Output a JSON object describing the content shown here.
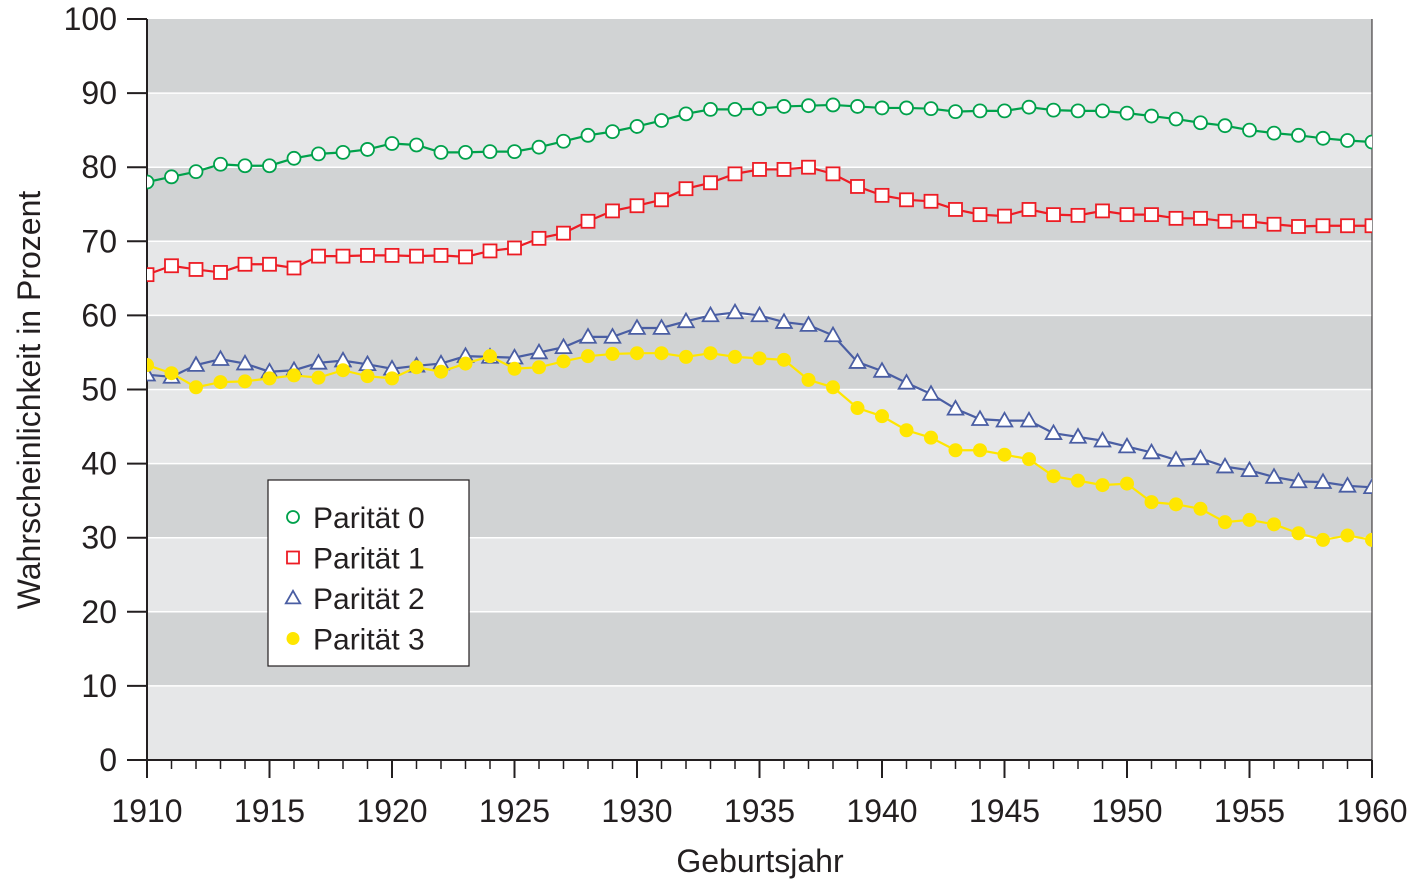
{
  "chart_data": {
    "type": "line",
    "xlabel": "Geburtsjahr",
    "ylabel": "Wahrscheinlichkeit in Prozent",
    "xlim": [
      1910,
      1960
    ],
    "ylim": [
      0,
      100
    ],
    "x_ticks": [
      "1910",
      "1915",
      "1920",
      "1925",
      "1930",
      "1935",
      "1940",
      "1945",
      "1950",
      "1955",
      "1960"
    ],
    "y_ticks": [
      "0",
      "10",
      "20",
      "30",
      "40",
      "50",
      "60",
      "70",
      "80",
      "90",
      "100"
    ],
    "legend_position": "lower-left",
    "background": "alternating horizontal gray bands",
    "x": [
      1910,
      1911,
      1912,
      1913,
      1914,
      1915,
      1916,
      1917,
      1918,
      1919,
      1920,
      1921,
      1922,
      1923,
      1924,
      1925,
      1926,
      1927,
      1928,
      1929,
      1930,
      1931,
      1932,
      1933,
      1934,
      1935,
      1936,
      1937,
      1938,
      1939,
      1940,
      1941,
      1942,
      1943,
      1944,
      1945,
      1946,
      1947,
      1948,
      1949,
      1950,
      1951,
      1952,
      1953,
      1954,
      1955,
      1956,
      1957,
      1958,
      1959,
      1960
    ],
    "series": [
      {
        "name": "Parität 0",
        "color": "#00a14b",
        "marker": "open-circle",
        "values": [
          78.0,
          78.7,
          79.4,
          80.4,
          80.2,
          80.2,
          81.2,
          81.8,
          82.0,
          82.4,
          83.2,
          83.0,
          82.0,
          82.0,
          82.1,
          82.1,
          82.7,
          83.5,
          84.3,
          84.8,
          85.5,
          86.3,
          87.2,
          87.8,
          87.8,
          87.9,
          88.2,
          88.3,
          88.4,
          88.2,
          88.0,
          88.0,
          87.9,
          87.5,
          87.6,
          87.6,
          88.1,
          87.7,
          87.6,
          87.6,
          87.3,
          86.9,
          86.5,
          86.0,
          85.6,
          85.0,
          84.6,
          84.3,
          83.9,
          83.6,
          83.4
        ]
      },
      {
        "name": "Parität 1",
        "color": "#ed1c24",
        "marker": "open-square",
        "values": [
          65.5,
          66.7,
          66.2,
          65.8,
          66.9,
          66.9,
          66.4,
          68.0,
          68.0,
          68.1,
          68.1,
          68.0,
          68.1,
          67.9,
          68.7,
          69.1,
          70.4,
          71.1,
          72.7,
          74.1,
          74.8,
          75.6,
          77.1,
          77.9,
          79.1,
          79.7,
          79.7,
          80.0,
          79.1,
          77.4,
          76.2,
          75.6,
          75.4,
          74.3,
          73.6,
          73.4,
          74.3,
          73.6,
          73.5,
          74.1,
          73.6,
          73.6,
          73.1,
          73.1,
          72.7,
          72.7,
          72.3,
          72.0,
          72.1,
          72.1,
          72.1
        ]
      },
      {
        "name": "Parität 2",
        "color": "#4a5ea3",
        "marker": "open-triangle",
        "values": [
          52.0,
          51.7,
          53.3,
          54.1,
          53.5,
          52.4,
          52.6,
          53.6,
          53.9,
          53.4,
          52.8,
          53.2,
          53.5,
          54.5,
          54.4,
          54.3,
          55.0,
          55.7,
          57.1,
          57.1,
          58.3,
          58.3,
          59.2,
          60.0,
          60.4,
          60.0,
          59.1,
          58.7,
          57.3,
          53.7,
          52.5,
          50.9,
          49.4,
          47.4,
          46.0,
          45.8,
          45.8,
          44.1,
          43.6,
          43.1,
          42.3,
          41.5,
          40.5,
          40.7,
          39.6,
          39.1,
          38.2,
          37.6,
          37.5,
          37.0,
          36.8
        ]
      },
      {
        "name": "Parität 3",
        "color": "#ffe600",
        "marker": "filled-circle",
        "values": [
          53.3,
          52.2,
          50.3,
          51.0,
          51.1,
          51.5,
          51.9,
          51.6,
          52.6,
          51.8,
          51.5,
          53.0,
          52.4,
          53.5,
          54.5,
          52.8,
          53.0,
          53.8,
          54.5,
          54.8,
          54.9,
          54.9,
          54.4,
          54.9,
          54.4,
          54.2,
          54.0,
          51.3,
          50.3,
          47.5,
          46.4,
          44.5,
          43.5,
          41.8,
          41.8,
          41.2,
          40.6,
          38.3,
          37.7,
          37.1,
          37.3,
          34.8,
          34.5,
          33.9,
          32.1,
          32.4,
          31.8,
          30.6,
          29.7,
          30.3,
          29.7
        ]
      }
    ]
  }
}
